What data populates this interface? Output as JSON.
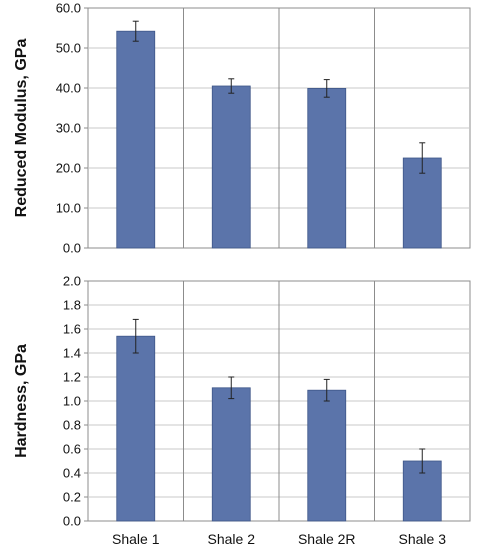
{
  "bar_color": "#5B74AA",
  "bar_edge_color": "#3E5688",
  "grid_color": "#c8c8c8",
  "axis_color": "#8c8c8c",
  "chart_data": [
    {
      "type": "bar",
      "categories": [
        "Shale 1",
        "Shale 2",
        "Shale 2R",
        "Shale 3"
      ],
      "values": [
        54.2,
        40.5,
        39.9,
        22.5
      ],
      "errors": [
        2.5,
        1.8,
        2.2,
        3.8
      ],
      "ylabel": "Reduced Modulus, GPa",
      "ylim": [
        0,
        60
      ],
      "yticks": [
        "0.0",
        "10.0",
        "20.0",
        "30.0",
        "40.0",
        "50.0",
        "60.0"
      ],
      "grid": true,
      "show_x_tick_labels": false
    },
    {
      "type": "bar",
      "categories": [
        "Shale 1",
        "Shale 2",
        "Shale 2R",
        "Shale 3"
      ],
      "values": [
        1.54,
        1.11,
        1.09,
        0.5
      ],
      "errors": [
        0.14,
        0.09,
        0.09,
        0.1
      ],
      "ylabel": "Hardness, GPa",
      "ylim": [
        0,
        2
      ],
      "yticks": [
        "0.0",
        "0.2",
        "0.4",
        "0.6",
        "0.8",
        "1.0",
        "1.2",
        "1.4",
        "1.6",
        "1.8",
        "2.0"
      ],
      "grid": true,
      "show_x_tick_labels": true
    }
  ]
}
